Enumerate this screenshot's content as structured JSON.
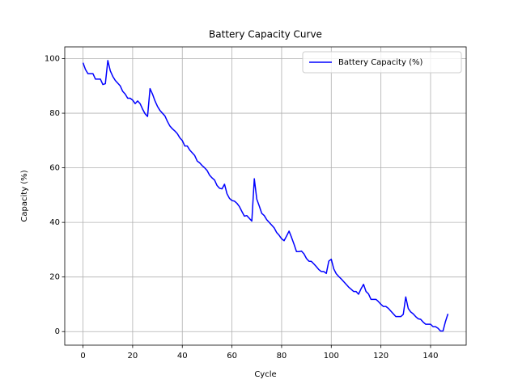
{
  "chart_data": {
    "type": "line",
    "title": "Battery Capacity Curve",
    "x_label": "Cycle",
    "y_label": "Capacity (%)",
    "x": [
      0,
      1,
      2,
      3,
      4,
      5,
      6,
      7,
      8,
      9,
      10,
      11,
      12,
      13,
      14,
      15,
      16,
      17,
      18,
      19,
      20,
      21,
      22,
      23,
      24,
      25,
      26,
      27,
      28,
      29,
      30,
      31,
      32,
      33,
      34,
      35,
      36,
      37,
      38,
      39,
      40,
      41,
      42,
      43,
      44,
      45,
      46,
      47,
      48,
      49,
      50,
      51,
      52,
      53,
      54,
      55,
      56,
      57,
      58,
      59,
      60,
      61,
      62,
      63,
      64,
      65,
      66,
      67,
      68,
      69,
      70,
      71,
      72,
      73,
      74,
      75,
      76,
      77,
      78,
      79,
      80,
      81,
      82,
      83,
      84,
      85,
      86,
      87,
      88,
      89,
      90,
      91,
      92,
      93,
      94,
      95,
      96,
      97,
      98,
      99,
      100,
      101,
      102,
      103,
      104,
      105,
      106,
      107,
      108,
      109,
      110,
      111,
      112,
      113,
      114,
      115,
      116,
      117,
      118,
      119,
      120,
      121,
      122,
      123,
      124,
      125,
      126,
      127,
      128,
      129,
      130,
      131,
      132,
      133,
      134,
      135,
      136,
      137,
      138,
      139,
      140,
      141,
      142,
      143,
      144,
      145,
      146,
      147
    ],
    "series": [
      {
        "name": "Battery Capacity (%)",
        "color": "#0000ff",
        "values": [
          98.5,
          96,
          94.5,
          94.5,
          94.5,
          92.5,
          92.5,
          92.5,
          90.5,
          90.8,
          99.3,
          95.5,
          93.5,
          92,
          91,
          90,
          88,
          87,
          85.5,
          85.5,
          84.8,
          83.5,
          84.5,
          83.5,
          81.5,
          79.8,
          78.8,
          89,
          87,
          84.5,
          82.5,
          81,
          80,
          79,
          77,
          75.3,
          74.3,
          73.5,
          72.5,
          71,
          70,
          68,
          68,
          66.5,
          65.5,
          64.5,
          62.5,
          61.8,
          60.8,
          60,
          59,
          57.3,
          56.3,
          55.5,
          53.5,
          52.5,
          52.3,
          54,
          50.5,
          48.8,
          48,
          47.8,
          47,
          45.8,
          44,
          42.3,
          42.5,
          41.5,
          40.5,
          56,
          48.5,
          46,
          43.3,
          42.5,
          41,
          40,
          39,
          38,
          36.3,
          35.3,
          34,
          33.3,
          35,
          36.8,
          34.5,
          32,
          29.3,
          29.3,
          29.5,
          28.5,
          26.8,
          25.8,
          25.7,
          24.8,
          23.8,
          22.7,
          22,
          22,
          21.3,
          25.8,
          26.5,
          23,
          21.2,
          20.2,
          19.3,
          18.3,
          17.3,
          16.3,
          15.5,
          14.7,
          14.7,
          13.7,
          15.7,
          17.3,
          14.7,
          13.8,
          11.8,
          11.8,
          11.8,
          11,
          10,
          9.2,
          9.2,
          8.5,
          7.5,
          6.5,
          5.5,
          5.5,
          5.5,
          6.3,
          12.7,
          8.5,
          7.2,
          6.5,
          5.5,
          4.7,
          4.5,
          3.5,
          2.7,
          2.7,
          2.7,
          1.8,
          1.8,
          1.2,
          0.2,
          0.2,
          3.7,
          6.5
        ]
      }
    ],
    "xlim": [
      -7.35,
      154.35
    ],
    "ylim": [
      -4.97,
      104.3
    ],
    "xticks": [
      0,
      20,
      40,
      60,
      80,
      100,
      120,
      140
    ],
    "yticks": [
      0,
      20,
      40,
      60,
      80,
      100
    ],
    "grid": true,
    "legend": "upper right"
  }
}
